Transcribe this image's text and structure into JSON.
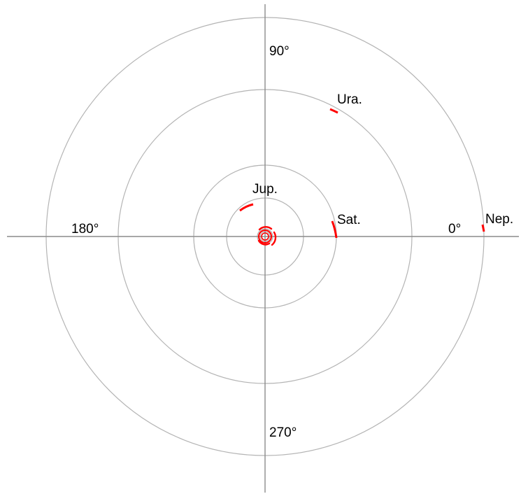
{
  "colors": {
    "background": "#ffffff",
    "ring": "#b4b4b4",
    "axis": "#8c8c8c",
    "marker": "#ff0000",
    "text": "#000000"
  },
  "angle_labels": {
    "a0": "0°",
    "a90": "90°",
    "a180": "180°",
    "a270": "270°"
  },
  "rings": [
    {
      "name": "inner-1"
    },
    {
      "name": "inner-2"
    },
    {
      "name": "jupiter-orbit"
    },
    {
      "name": "saturn-orbit"
    },
    {
      "name": "uranus-orbit"
    },
    {
      "name": "neptune-orbit"
    }
  ],
  "planets": [
    {
      "name": "jupiter",
      "label": "Jup."
    },
    {
      "name": "saturn",
      "label": "Sat."
    },
    {
      "name": "uranus",
      "label": "Ura."
    },
    {
      "name": "neptune",
      "label": "Nep."
    }
  ]
}
